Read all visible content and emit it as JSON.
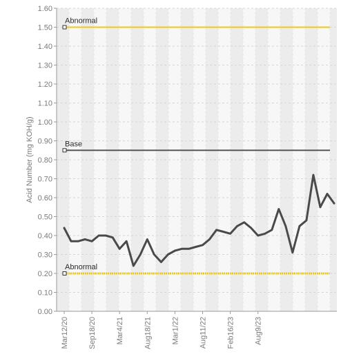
{
  "chart_data": {
    "type": "line",
    "ylabel": "Acid Number (mg KOH/g)",
    "xlabel": "",
    "ylim": [
      0,
      1.6
    ],
    "y_ticks": [
      "0.00",
      "0.10",
      "0.20",
      "0.30",
      "0.40",
      "0.50",
      "0.60",
      "0.70",
      "0.80",
      "0.90",
      "1.00",
      "1.10",
      "1.20",
      "1.30",
      "1.40",
      "1.50",
      "1.60"
    ],
    "x_tick_labels": [
      "Mar12/20",
      "Sep18/20",
      "Mar4/21",
      "Aug18/21",
      "Mar1/22",
      "Aug11/22",
      "Feb16/23",
      "Aug9/23"
    ],
    "x_tick_indices": [
      0,
      4,
      8,
      12,
      16,
      20,
      24,
      28
    ],
    "grid": true,
    "series": [
      {
        "values": [
          0.44,
          0.37,
          0.37,
          0.38,
          0.37,
          0.4,
          0.4,
          0.39,
          0.33,
          0.37,
          0.24,
          0.3,
          0.38,
          0.3,
          0.26,
          0.3,
          0.32,
          0.33,
          0.33,
          0.34,
          0.35,
          0.38,
          0.43,
          0.42,
          0.41,
          0.45,
          0.47,
          0.44,
          0.4,
          0.41,
          0.43,
          0.54,
          0.45,
          0.31,
          0.45,
          0.48,
          0.72,
          0.55,
          0.62,
          0.57
        ],
        "color": "#4a4a4a"
      }
    ],
    "reference_lines": [
      {
        "label": "Abnormal",
        "value": 1.5,
        "color": "#f2c811",
        "style": "solid"
      },
      {
        "label": "Base",
        "value": 0.85,
        "color": "#555555",
        "style": "solid"
      },
      {
        "label": "Abnormal",
        "value": 0.2,
        "color": "#f2c811",
        "style": "dotted"
      }
    ]
  }
}
